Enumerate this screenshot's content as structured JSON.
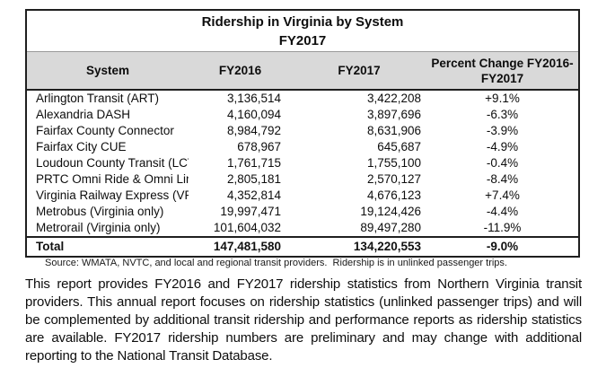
{
  "table": {
    "title_line1": "Ridership in Virginia by System",
    "title_line2": "FY2017",
    "header": {
      "system": "System",
      "fy2016": "FY2016",
      "fy2017": "FY2017",
      "percent_line1": "Percent Change FY2016-",
      "percent_line2": "FY2017"
    },
    "rows": [
      {
        "system": "Arlington Transit (ART)",
        "fy2016": "3,136,514",
        "fy2017": "3,422,208",
        "pct": "+9.1%"
      },
      {
        "system": "Alexandria DASH",
        "fy2016": "4,160,094",
        "fy2017": "3,897,696",
        "pct": "-6.3%"
      },
      {
        "system": "Fairfax County Connector",
        "fy2016": "8,984,792",
        "fy2017": "8,631,906",
        "pct": "-3.9%"
      },
      {
        "system": "Fairfax City CUE",
        "fy2016": "678,967",
        "fy2017": "645,687",
        "pct": "-4.9%"
      },
      {
        "system": "Loudoun County Transit (LCT)",
        "fy2016": "1,761,715",
        "fy2017": "1,755,100",
        "pct": "-0.4%"
      },
      {
        "system": "PRTC Omni Ride & Omni Link",
        "fy2016": "2,805,181",
        "fy2017": "2,570,127",
        "pct": "-8.4%"
      },
      {
        "system": "Virginia Railway Express (VRE)",
        "fy2016": "4,352,814",
        "fy2017": "4,676,123",
        "pct": "+7.4%"
      },
      {
        "system": "Metrobus (Virginia only)",
        "fy2016": "19,997,471",
        "fy2017": "19,124,426",
        "pct": "-4.4%"
      },
      {
        "system": "Metrorail (Virginia only)",
        "fy2016": "101,604,032",
        "fy2017": "89,497,280",
        "pct": "-11.9%"
      }
    ],
    "total_row": {
      "system": "Total",
      "fy2016": "147,481,580",
      "fy2017": "134,220,553",
      "pct": "-9.0%"
    },
    "source_note": "Source: WMATA, NVTC, and local and regional transit providers.  Ridership is in unlinked passenger trips."
  },
  "body_text": "This report provides FY2016 and FY2017 ridership statistics from Northern Virginia transit providers. This annual report focuses on ridership statistics (unlinked passenger trips) and will be complemented by additional transit ridership and performance reports as ridership statistics are available. FY2017 ridership numbers are preliminary and may change with additional reporting to the National Transit Database.",
  "colors": {
    "header_bg": "#d9d9d9",
    "border": "#1f1f1f",
    "text": "#0d0d0d"
  }
}
